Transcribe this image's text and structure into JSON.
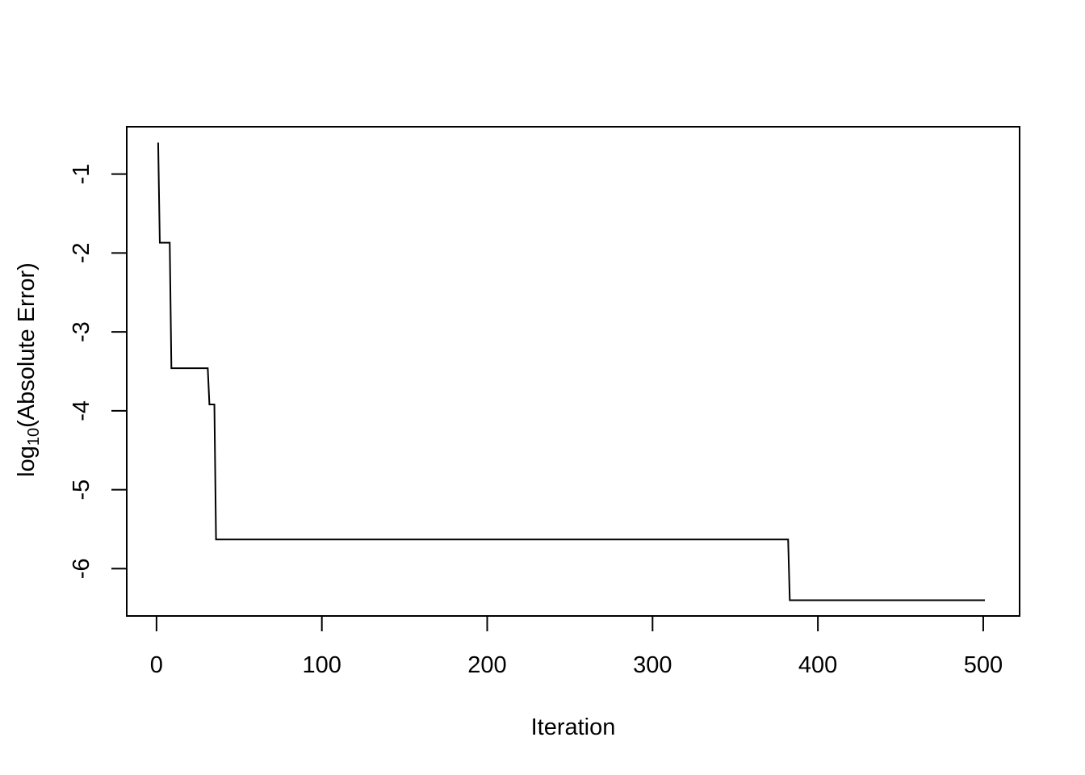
{
  "chart_data": {
    "type": "line",
    "line_style": "step",
    "xlabel": "Iteration",
    "ylabel": {
      "prefix": "log",
      "subscript": "10",
      "suffix": "(Absolute Error)"
    },
    "xlim": [
      -18,
      522
    ],
    "ylim": [
      -6.6,
      -0.4
    ],
    "x_ticks": [
      0,
      100,
      200,
      300,
      400,
      500
    ],
    "x_tick_labels": [
      "0",
      "100",
      "200",
      "300",
      "400",
      "500"
    ],
    "y_ticks": [
      -1,
      -2,
      -3,
      -4,
      -5,
      -6
    ],
    "y_tick_labels": [
      "-1",
      "-2",
      "-3",
      "-4",
      "-5",
      "-6"
    ],
    "grid": false,
    "line_color": "#000000",
    "series": [
      {
        "x": [
          1,
          2,
          8,
          9,
          31,
          32,
          35,
          36,
          382,
          383,
          501
        ],
        "y": [
          -0.6,
          -1.87,
          -1.87,
          -3.46,
          -3.46,
          -3.92,
          -3.92,
          -5.63,
          -5.63,
          -6.4,
          -6.4
        ]
      }
    ]
  }
}
